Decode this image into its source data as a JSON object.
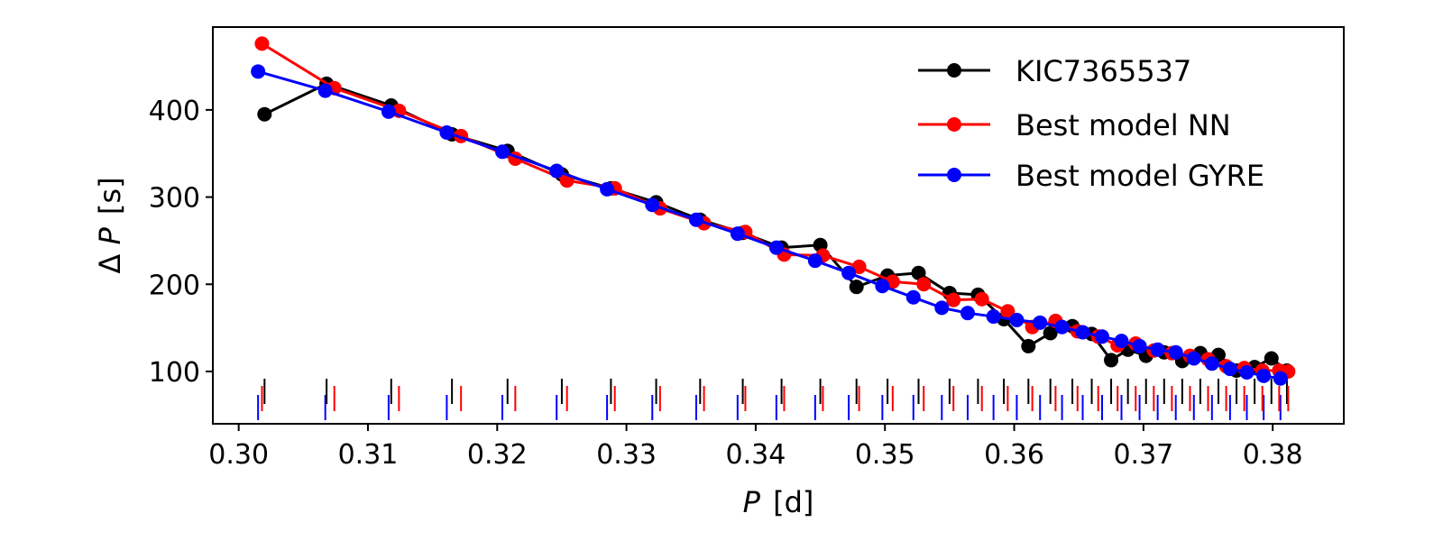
{
  "chart_data": {
    "type": "line",
    "xlabel_var": "P",
    "xlabel_unit": "[d]",
    "ylabel_prefix": "Δ",
    "ylabel_var": "P",
    "ylabel_unit": "[s]",
    "xlim": [
      0.298,
      0.3855
    ],
    "ylim": [
      40,
      495
    ],
    "xticks": [
      0.3,
      0.31,
      0.32,
      0.33,
      0.34,
      0.35,
      0.36,
      0.37,
      0.38
    ],
    "xtick_labels": [
      "0.30",
      "0.31",
      "0.32",
      "0.33",
      "0.34",
      "0.35",
      "0.36",
      "0.37",
      "0.38"
    ],
    "yticks": [
      100,
      200,
      300,
      400
    ],
    "ytick_labels": [
      "100",
      "200",
      "300",
      "400"
    ],
    "legend_position": "top-right",
    "grid": false,
    "series": [
      {
        "name": "KIC7365537",
        "color": "#000000",
        "x": [
          0.302,
          0.3068,
          0.3118,
          0.3165,
          0.3208,
          0.325,
          0.3288,
          0.3323,
          0.3357,
          0.339,
          0.342,
          0.345,
          0.3478,
          0.3502,
          0.3526,
          0.355,
          0.3572,
          0.3592,
          0.3611,
          0.3628,
          0.3645,
          0.366,
          0.3675,
          0.3688,
          0.3702,
          0.3716,
          0.373,
          0.3744,
          0.3758,
          0.3772,
          0.3786,
          0.3799,
          0.3811
        ],
        "y": [
          395,
          430,
          405,
          372,
          353,
          326,
          310,
          294,
          274,
          259,
          242,
          245,
          197,
          210,
          213,
          190,
          188,
          160,
          129,
          144,
          152,
          143,
          113,
          125,
          118,
          122,
          112,
          121,
          119,
          101,
          105,
          115,
          101
        ]
      },
      {
        "name": "Best model NN",
        "color": "#ff0000",
        "x": [
          0.3018,
          0.3074,
          0.3124,
          0.3172,
          0.3214,
          0.3254,
          0.3291,
          0.3326,
          0.336,
          0.3392,
          0.3422,
          0.3452,
          0.348,
          0.3506,
          0.353,
          0.3553,
          0.3575,
          0.3595,
          0.3614,
          0.3632,
          0.3649,
          0.3665,
          0.368,
          0.3694,
          0.3708,
          0.3722,
          0.3736,
          0.375,
          0.3764,
          0.3778,
          0.3792,
          0.3805,
          0.3812
        ],
        "y": [
          476,
          425,
          399,
          370,
          344,
          319,
          310,
          287,
          270,
          260,
          234,
          233,
          220,
          203,
          200,
          182,
          183,
          169,
          151,
          158,
          146,
          140,
          130,
          132,
          124,
          121,
          118,
          114,
          106,
          104,
          101,
          101,
          100
        ]
      },
      {
        "name": "Best model GYRE",
        "color": "#0000ff",
        "x": [
          0.3015,
          0.3067,
          0.3116,
          0.3161,
          0.3204,
          0.3246,
          0.3285,
          0.332,
          0.3354,
          0.3386,
          0.3416,
          0.3446,
          0.3472,
          0.3498,
          0.3522,
          0.3544,
          0.3564,
          0.3584,
          0.3602,
          0.362,
          0.3637,
          0.3653,
          0.3668,
          0.3683,
          0.3697,
          0.3711,
          0.3725,
          0.3739,
          0.3753,
          0.3767,
          0.378,
          0.3793,
          0.3806
        ],
        "y": [
          444,
          422,
          398,
          374,
          352,
          330,
          309,
          291,
          274,
          258,
          242,
          227,
          213,
          198,
          185,
          173,
          167,
          163,
          159,
          156,
          151,
          145,
          140,
          135,
          129,
          125,
          122,
          115,
          109,
          103,
          99,
          95,
          92
        ]
      }
    ]
  }
}
